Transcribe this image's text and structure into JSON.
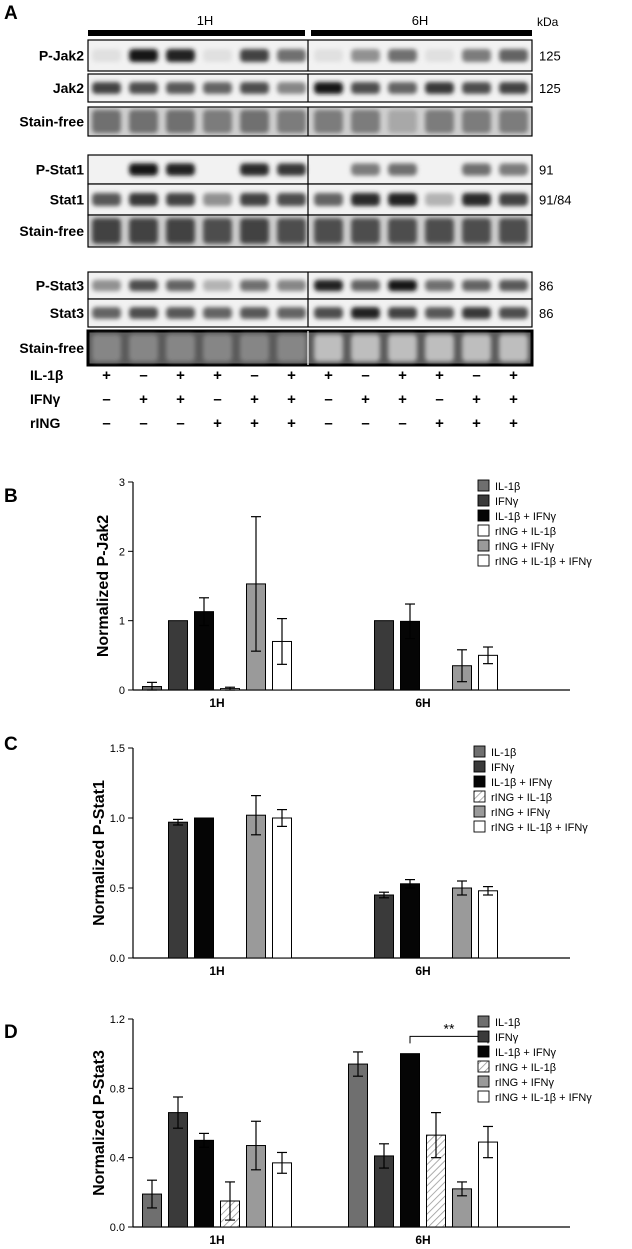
{
  "panel_a": {
    "letter": "A",
    "time_headers": [
      "1H",
      "6H"
    ],
    "kda_label": "kDa",
    "blots": [
      {
        "label": "P-Jak2",
        "kda": "125",
        "signal": [
          0.05,
          0.95,
          0.9,
          0.05,
          0.75,
          0.55,
          0.05,
          0.4,
          0.55,
          0.05,
          0.5,
          0.6
        ]
      },
      {
        "label": "Jak2",
        "kda": "125",
        "signal": [
          0.75,
          0.7,
          0.65,
          0.6,
          0.7,
          0.45,
          0.95,
          0.7,
          0.6,
          0.8,
          0.7,
          0.75
        ]
      },
      {
        "label": "Stain-free",
        "kda": "",
        "signal": [
          0.55,
          0.55,
          0.55,
          0.5,
          0.55,
          0.5,
          0.5,
          0.5,
          0.3,
          0.5,
          0.5,
          0.5
        ]
      },
      {
        "label": "P-Stat1",
        "kda": "91",
        "signal": [
          0.0,
          0.95,
          0.9,
          0.0,
          0.85,
          0.8,
          0.0,
          0.5,
          0.55,
          0.0,
          0.55,
          0.5
        ]
      },
      {
        "label": "Stat1",
        "kda": "91/84",
        "signal": [
          0.65,
          0.8,
          0.75,
          0.4,
          0.75,
          0.7,
          0.6,
          0.85,
          0.9,
          0.25,
          0.85,
          0.75
        ]
      },
      {
        "label": "Stain-free",
        "kda": "",
        "signal": [
          0.75,
          0.75,
          0.75,
          0.7,
          0.75,
          0.7,
          0.7,
          0.7,
          0.7,
          0.7,
          0.7,
          0.7
        ]
      },
      {
        "label": "P-Stat3",
        "kda": "86",
        "signal": [
          0.4,
          0.7,
          0.6,
          0.25,
          0.55,
          0.45,
          0.9,
          0.6,
          0.95,
          0.55,
          0.6,
          0.65
        ]
      },
      {
        "label": "Stat3",
        "kda": "86",
        "signal": [
          0.6,
          0.7,
          0.65,
          0.6,
          0.65,
          0.6,
          0.7,
          0.9,
          0.75,
          0.65,
          0.8,
          0.7
        ]
      },
      {
        "label": "Stain-free",
        "kda": "",
        "signal": [
          0.45,
          0.45,
          0.45,
          0.45,
          0.45,
          0.45,
          0.2,
          0.2,
          0.2,
          0.2,
          0.2,
          0.2
        ]
      }
    ],
    "treatments": [
      {
        "label": "IL-1β",
        "marks": [
          "+",
          "–",
          "+",
          "+",
          "–",
          "+",
          "+",
          "–",
          "+",
          "+",
          "–",
          "+"
        ]
      },
      {
        "label": "IFNγ",
        "marks": [
          "–",
          "+",
          "+",
          "–",
          "+",
          "+",
          "–",
          "+",
          "+",
          "–",
          "+",
          "+"
        ]
      },
      {
        "label": "rING",
        "marks": [
          "–",
          "–",
          "–",
          "+",
          "+",
          "+",
          "–",
          "–",
          "–",
          "+",
          "+",
          "+"
        ]
      }
    ]
  },
  "chart_data": [
    {
      "type": "bar",
      "letter": "B",
      "ylabel": "Normalized P-Jak2",
      "categories": [
        "1H",
        "6H"
      ],
      "ylim": [
        0,
        3
      ],
      "yticks": [
        "0",
        "1",
        "2",
        "3"
      ],
      "yticks_values": [
        0,
        1,
        2,
        3
      ],
      "series": [
        {
          "name": "IL-1β",
          "color": "#6f6f6f",
          "values": [
            0.05,
            null
          ],
          "errors": [
            0.06,
            null
          ]
        },
        {
          "name": "IFNγ",
          "color": "#3a3a3a",
          "values": [
            1.0,
            1.0
          ],
          "errors": [
            0,
            0
          ]
        },
        {
          "name": "IL-1β + IFNγ",
          "color": "#050505",
          "values": [
            1.13,
            0.99
          ],
          "errors": [
            0.2,
            0.25
          ]
        },
        {
          "name": "rING + IL-1β",
          "color": "#ffffff",
          "values": [
            0.02,
            null
          ],
          "errors": [
            0.02,
            null
          ]
        },
        {
          "name": "rING + IFNγ",
          "color": "#9a9a9a",
          "values": [
            1.53,
            0.35
          ],
          "errors": [
            0.97,
            0.23
          ]
        },
        {
          "name": "rING + IL-1β + IFNγ",
          "color": "#ffffff",
          "values": [
            0.7,
            0.5
          ],
          "errors": [
            0.33,
            0.12
          ]
        }
      ],
      "annotations": []
    },
    {
      "type": "bar",
      "letter": "C",
      "ylabel": "Normalized P-Stat1",
      "categories": [
        "1H",
        "6H"
      ],
      "ylim": [
        0,
        1.5
      ],
      "yticks": [
        "0.0",
        "0.5",
        "1.0",
        "1.5"
      ],
      "yticks_values": [
        0,
        0.5,
        1.0,
        1.5
      ],
      "series": [
        {
          "name": "IL-1β",
          "color": "#6f6f6f",
          "values": [
            null,
            null
          ],
          "errors": [
            null,
            null
          ]
        },
        {
          "name": "IFNγ",
          "color": "#3a3a3a",
          "values": [
            0.97,
            0.45
          ],
          "errors": [
            0.02,
            0.02
          ]
        },
        {
          "name": "IL-1β + IFNγ",
          "color": "#050505",
          "values": [
            1.0,
            0.53
          ],
          "errors": [
            0,
            0.03
          ]
        },
        {
          "name": "rING + IL-1β",
          "color": "hatch",
          "values": [
            null,
            null
          ],
          "errors": [
            null,
            null
          ]
        },
        {
          "name": "rING + IFNγ",
          "color": "#9a9a9a",
          "values": [
            1.02,
            0.5
          ],
          "errors": [
            0.14,
            0.05
          ]
        },
        {
          "name": "rING + IL-1β + IFNγ",
          "color": "#ffffff",
          "values": [
            1.0,
            0.48
          ],
          "errors": [
            0.06,
            0.03
          ]
        }
      ],
      "annotations": []
    },
    {
      "type": "bar",
      "letter": "D",
      "ylabel": "Normalized P-Stat3",
      "categories": [
        "1H",
        "6H"
      ],
      "ylim": [
        0,
        1.2
      ],
      "yticks": [
        "0.0",
        "0.4",
        "0.8",
        "1.2"
      ],
      "yticks_values": [
        0,
        0.4,
        0.8,
        1.2
      ],
      "series": [
        {
          "name": "IL-1β",
          "color": "#6f6f6f",
          "values": [
            0.19,
            0.94
          ],
          "errors": [
            0.08,
            0.07
          ]
        },
        {
          "name": "IFNγ",
          "color": "#3a3a3a",
          "values": [
            0.66,
            0.41
          ],
          "errors": [
            0.09,
            0.07
          ]
        },
        {
          "name": "IL-1β + IFNγ",
          "color": "#050505",
          "values": [
            0.5,
            1.0
          ],
          "errors": [
            0.04,
            0
          ]
        },
        {
          "name": "rING + IL-1β",
          "color": "hatch",
          "values": [
            0.15,
            0.53
          ],
          "errors": [
            0.11,
            0.13
          ]
        },
        {
          "name": "rING + IFNγ",
          "color": "#9a9a9a",
          "values": [
            0.47,
            0.22
          ],
          "errors": [
            0.14,
            0.04
          ]
        },
        {
          "name": "rING + IL-1β + IFNγ",
          "color": "#ffffff",
          "values": [
            0.37,
            0.49
          ],
          "errors": [
            0.06,
            0.09
          ]
        }
      ],
      "annotations": [
        {
          "text": "**",
          "from_series": 2,
          "to_series": 5,
          "category": 1,
          "y": 1.1
        }
      ]
    }
  ]
}
